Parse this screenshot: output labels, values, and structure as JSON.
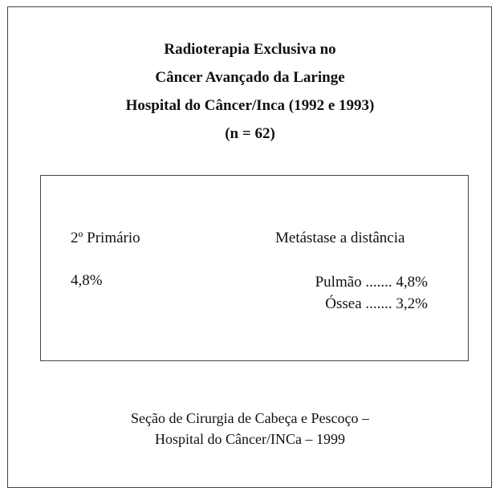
{
  "header": {
    "title_lines": [
      "Radioterapia Exclusiva no",
      "Câncer Avançado da Laringe",
      "Hospital do Câncer/Inca (1992 e 1993)",
      "(n = 62)"
    ]
  },
  "box": {
    "left": {
      "heading": "2º Primário",
      "value": "4,8%"
    },
    "right": {
      "heading": "Metástase a distância",
      "items": [
        "Pulmão ....... 4,8%",
        "Óssea ....... 3,2%"
      ]
    }
  },
  "footer": {
    "lines": [
      "Seção de Cirurgia de Cabeça e Pescoço –",
      "Hospital do Câncer/INCa – 1999"
    ]
  }
}
